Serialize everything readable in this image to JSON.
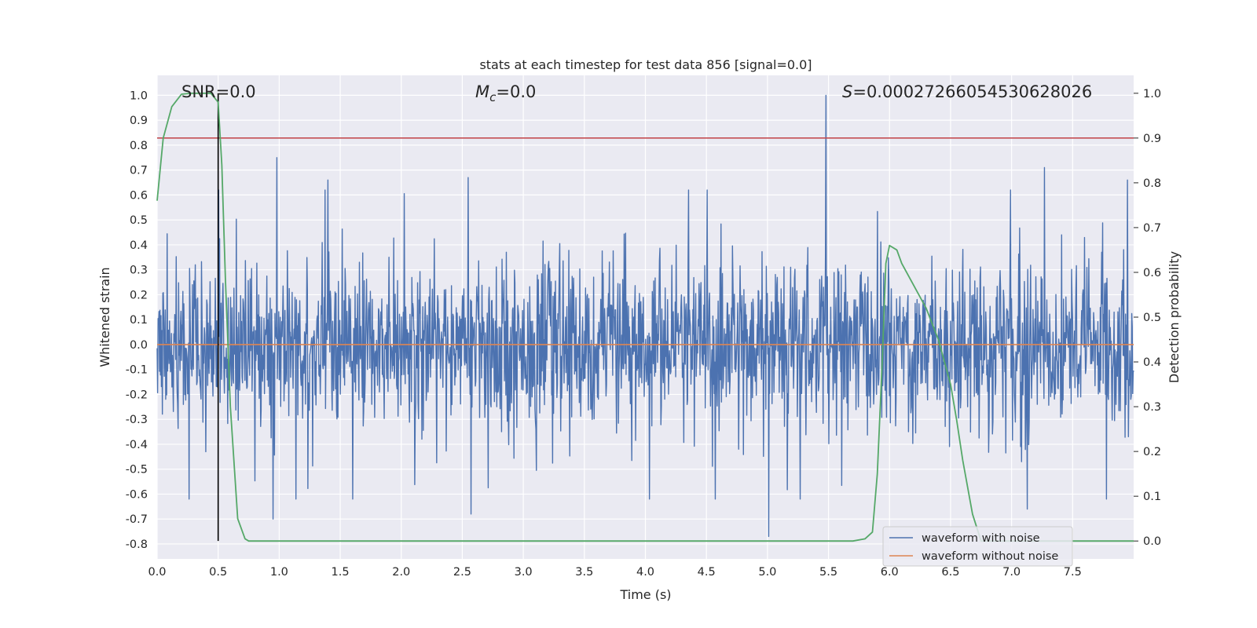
{
  "chart_data": {
    "type": "line",
    "title": "stats at each timestep for test data 856 [signal=0.0]",
    "xlabel": "Time (s)",
    "ylabel": "Whitened strain",
    "y2label": "Detection probability",
    "xlim": [
      0.0,
      8.0
    ],
    "ylim": [
      -0.86,
      1.08
    ],
    "y2lim": [
      -0.04,
      1.04
    ],
    "x_ticks": [
      "0.0",
      "0.5",
      "1.0",
      "1.5",
      "2.0",
      "2.5",
      "3.0",
      "3.5",
      "4.0",
      "4.5",
      "5.0",
      "5.5",
      "6.0",
      "6.5",
      "7.0",
      "7.5"
    ],
    "y_ticks": [
      "1.0",
      "0.9",
      "0.8",
      "0.7",
      "0.6",
      "0.5",
      "0.4",
      "0.3",
      "0.2",
      "0.1",
      "0.0",
      "-0.1",
      "-0.2",
      "-0.3",
      "-0.4",
      "-0.5",
      "-0.6",
      "-0.7",
      "-0.8"
    ],
    "y2_ticks": [
      "1.0",
      "0.9",
      "0.8",
      "0.7",
      "0.6",
      "0.5",
      "0.4",
      "0.3",
      "0.2",
      "0.1",
      "0.0"
    ],
    "grid": true,
    "legend_position": "lower-right",
    "annotations": {
      "snr": "SNR=0.0",
      "mc_symbol": "M",
      "mc_sub": "c",
      "mc_value": "=0.0",
      "s_symbol": "S",
      "s_value": "=0.00027266054530628026"
    },
    "threshold_y2": 0.9,
    "marker_x": 0.5,
    "noise_spikes": [
      {
        "x": 0.98,
        "y": 0.75
      },
      {
        "x": 5.48,
        "y": 1.0
      },
      {
        "x": 7.27,
        "y": 0.71
      },
      {
        "x": 7.95,
        "y": 0.66
      },
      {
        "x": 1.4,
        "y": 0.66
      },
      {
        "x": 2.55,
        "y": 0.67
      },
      {
        "x": 5.01,
        "y": -0.77
      },
      {
        "x": 2.57,
        "y": -0.68
      },
      {
        "x": 0.95,
        "y": -0.7
      },
      {
        "x": 7.13,
        "y": -0.66
      },
      {
        "x": 0.26,
        "y": -0.62
      }
    ],
    "series": [
      {
        "name": "waveform with noise",
        "color": "#4c72b0",
        "description_values": "noisy whitened strain, mostly within ±0.5"
      },
      {
        "name": "waveform without noise",
        "color": "#dd8452",
        "x": [
          0.0,
          8.0
        ],
        "y": [
          0.0,
          0.0
        ]
      },
      {
        "name": "",
        "color": "#55a868",
        "axis": "y2",
        "x": [
          0.0,
          0.05,
          0.12,
          0.2,
          0.28,
          0.36,
          0.44,
          0.5,
          0.53,
          0.56,
          0.6,
          0.66,
          0.72,
          0.75,
          0.8,
          1.0,
          2.0,
          3.0,
          4.0,
          5.0,
          5.7,
          5.8,
          5.86,
          5.9,
          5.94,
          5.97,
          6.0,
          6.06,
          6.1,
          6.2,
          6.3,
          6.4,
          6.5,
          6.55,
          6.6,
          6.68,
          6.75,
          7.0,
          8.0
        ],
        "y": [
          0.76,
          0.9,
          0.97,
          0.998,
          1.0,
          1.0,
          1.0,
          0.98,
          0.84,
          0.58,
          0.3,
          0.05,
          0.005,
          0.0,
          0.0,
          0.0,
          0.0,
          0.0,
          0.0,
          0.0,
          0.0,
          0.005,
          0.02,
          0.15,
          0.4,
          0.62,
          0.66,
          0.65,
          0.62,
          0.57,
          0.52,
          0.45,
          0.35,
          0.27,
          0.18,
          0.06,
          0.0,
          0.0,
          0.0
        ]
      }
    ],
    "colors": {
      "background": "#eaeaf2",
      "grid": "#ffffff",
      "threshold": "#c44e52",
      "marker": "#000000",
      "text": "#262626"
    }
  }
}
